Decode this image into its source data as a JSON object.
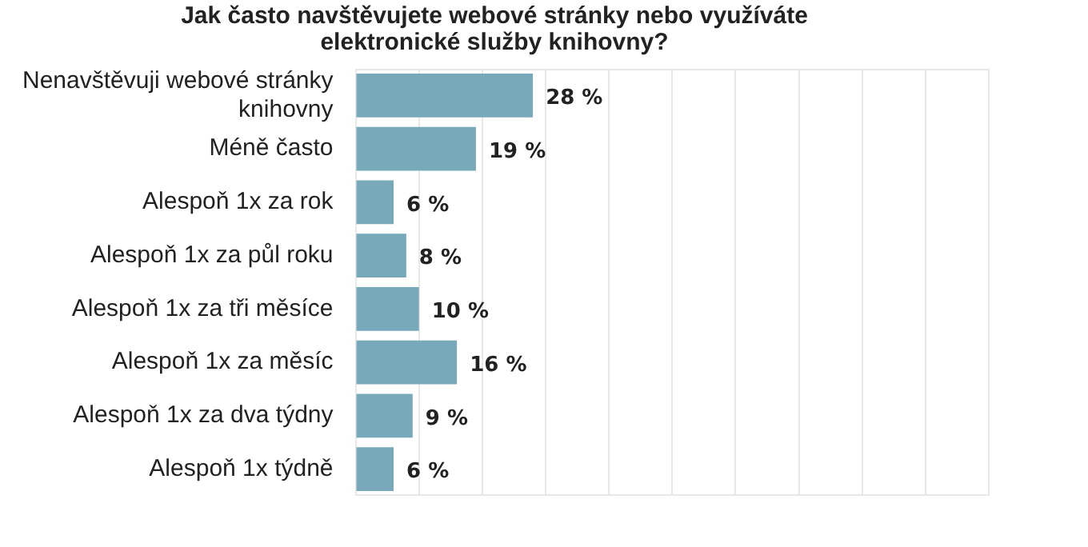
{
  "chart_data": {
    "type": "bar",
    "orientation": "horizontal",
    "title": "Jak často navštěvujete webové stránky nebo využíváte elektronické služby knihovny?",
    "categories": [
      "Nenavštěvuji webové stránky knihovny",
      "Méně často",
      "Alespoň 1x za rok",
      "Alespoň 1x za půl roku",
      "Alespoň 1x za tři měsíce",
      "Alespoň 1x za měsíc",
      "Alespoň 1x za dva týdny",
      "Alespoň 1x týdně"
    ],
    "values": [
      28,
      19,
      6,
      8,
      10,
      16,
      9,
      6
    ],
    "value_labels": [
      "28 %",
      "19 %",
      "6 %",
      "8 %",
      "10 %",
      "16 %",
      "9 %",
      "6 %"
    ],
    "color": "#78a9bb",
    "xlim": [
      0,
      100
    ],
    "xticks": [
      {
        "value": 0,
        "label": null
      },
      {
        "value": 10,
        "label": null
      },
      {
        "value": 20,
        "label": null
      },
      {
        "value": 30,
        "label": null
      },
      {
        "value": 40,
        "label": null
      },
      {
        "value": 50,
        "label": null
      },
      {
        "value": 60,
        "label": null
      },
      {
        "value": 70,
        "label": null
      },
      {
        "value": 80,
        "label": null
      },
      {
        "value": 90,
        "label": null
      },
      {
        "value": 100,
        "label": null
      }
    ],
    "grid": "x",
    "legend": false,
    "tick_labels": "y"
  }
}
